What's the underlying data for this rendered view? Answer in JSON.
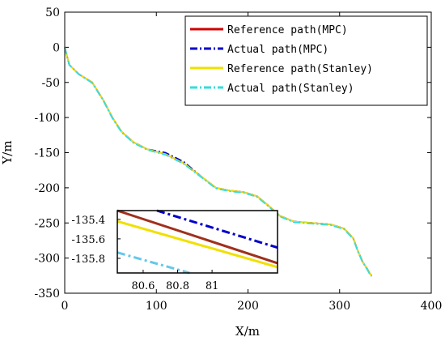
{
  "chart_data": {
    "type": "line",
    "title": "",
    "xlabel": "X/m",
    "ylabel": "Y/m",
    "xlim": [
      0,
      400
    ],
    "ylim": [
      -350,
      50
    ],
    "x_ticks": [
      0,
      100,
      200,
      300,
      400
    ],
    "y_ticks": [
      50,
      0,
      -50,
      -100,
      -150,
      -200,
      -250,
      -300,
      -350
    ],
    "grid": false,
    "legend_position": "top-right",
    "series": [
      {
        "name": "Reference path(MPC)",
        "color": "#cc0000",
        "style": "solid",
        "x": [
          0,
          5,
          15,
          30,
          42,
          52,
          62,
          75,
          90,
          110,
          130,
          150,
          165,
          180,
          195,
          210,
          222,
          235,
          250,
          270,
          290,
          305,
          315,
          320,
          325,
          330,
          333,
          335
        ],
        "y": [
          0,
          -25,
          -38,
          -50,
          -75,
          -100,
          -120,
          -135,
          -145,
          -152,
          -165,
          -185,
          -200,
          -204,
          -206,
          -212,
          -225,
          -240,
          -248,
          -250,
          -252,
          -258,
          -272,
          -290,
          -305,
          -315,
          -322,
          -325
        ]
      },
      {
        "name": "Actual path(MPC)",
        "color": "#0000cc",
        "style": "dashdot",
        "x": [
          0,
          5,
          15,
          30,
          42,
          52,
          62,
          75,
          90,
          110,
          130,
          150,
          165,
          180,
          195,
          210,
          222,
          235,
          250,
          270,
          290,
          305,
          315,
          320,
          325,
          330,
          333,
          335
        ],
        "y": [
          0,
          -25,
          -38,
          -50,
          -75,
          -100,
          -120,
          -135,
          -145,
          -150,
          -163,
          -185,
          -200,
          -204,
          -206,
          -212,
          -225,
          -240,
          -248,
          -250,
          -252,
          -258,
          -272,
          -290,
          -305,
          -315,
          -322,
          -325
        ]
      },
      {
        "name": "Reference path(Stanley)",
        "color": "#f0e000",
        "style": "solid",
        "x": [
          0,
          5,
          15,
          30,
          42,
          52,
          62,
          75,
          90,
          110,
          130,
          150,
          165,
          180,
          195,
          210,
          222,
          235,
          250,
          270,
          290,
          305,
          315,
          320,
          325,
          330,
          333,
          335
        ],
        "y": [
          0,
          -25,
          -38,
          -50,
          -75,
          -100,
          -120,
          -135,
          -145,
          -152,
          -165,
          -185,
          -200,
          -204,
          -206,
          -212,
          -225,
          -240,
          -248,
          -250,
          -252,
          -258,
          -272,
          -290,
          -305,
          -315,
          -322,
          -325
        ]
      },
      {
        "name": "Actual path(Stanley)",
        "color": "#33dddd",
        "style": "dashdot",
        "x": [
          0,
          5,
          15,
          30,
          42,
          52,
          62,
          75,
          90,
          110,
          130,
          150,
          165,
          180,
          195,
          210,
          222,
          235,
          250,
          270,
          290,
          305,
          315,
          320,
          325,
          330,
          333,
          335
        ],
        "y": [
          0,
          -25,
          -38,
          -51,
          -76,
          -101,
          -121,
          -136,
          -146,
          -153,
          -166,
          -186,
          -201,
          -205,
          -207,
          -213,
          -226,
          -241,
          -249,
          -251,
          -253,
          -259,
          -273,
          -291,
          -306,
          -316,
          -323,
          -326
        ]
      }
    ],
    "inset": {
      "xlim": [
        80.45,
        81.38
      ],
      "ylim": [
        -135.95,
        -135.31
      ],
      "x_ticks": [
        80.6,
        80.8,
        81
      ],
      "y_ticks": [
        -135.4,
        -135.6,
        -135.8
      ],
      "x_tick_labels": [
        "80.6",
        "80.8",
        "81"
      ],
      "y_tick_labels": [
        "-135.4",
        "-135.6",
        "-135.8"
      ],
      "series": [
        {
          "name": "Reference path(MPC)",
          "color": "#a0301c",
          "style": "solid",
          "width": 3,
          "x": [
            80.45,
            81.38
          ],
          "y": [
            -135.31,
            -135.85
          ]
        },
        {
          "name": "Actual path(MPC)",
          "color": "#0000cc",
          "style": "dashdot",
          "width": 3,
          "x": [
            80.68,
            81.38
          ],
          "y": [
            -135.31,
            -135.69
          ]
        },
        {
          "name": "Reference path(Stanley)",
          "color": "#f0e000",
          "style": "solid",
          "width": 3,
          "x": [
            80.45,
            81.38
          ],
          "y": [
            -135.42,
            -135.89
          ]
        },
        {
          "name": "Actual path(Stanley)",
          "color": "#66c8e8",
          "style": "dashdot",
          "width": 3,
          "x": [
            80.45,
            80.87
          ],
          "y": [
            -135.74,
            -135.95
          ]
        }
      ]
    }
  }
}
